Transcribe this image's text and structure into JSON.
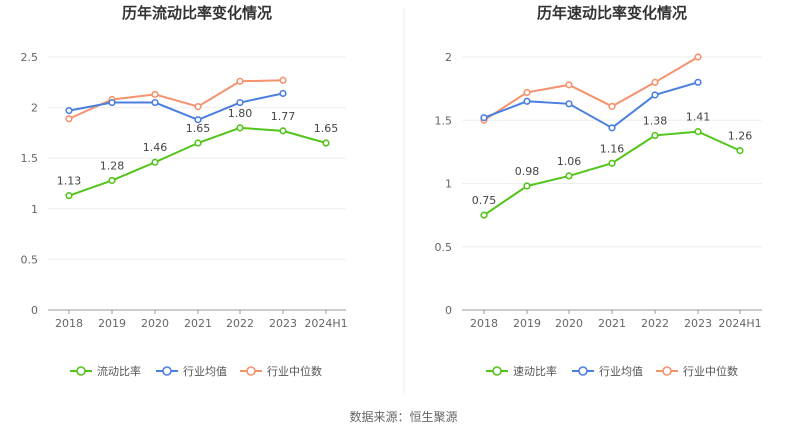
{
  "source": "数据来源：恒生聚源",
  "colors": {
    "primary": "#52c41a",
    "industry_avg": "#4a7fe0",
    "industry_median": "#f4926d"
  },
  "chart_data": [
    {
      "type": "line",
      "title": "历年流动比率变化情况",
      "categories": [
        "2018",
        "2019",
        "2020",
        "2021",
        "2022",
        "2023",
        "2024H1"
      ],
      "ylim": [
        0,
        2.5
      ],
      "yticks": [
        0,
        0.5,
        1,
        1.5,
        2,
        2.5
      ],
      "ytick_labels": [
        "0",
        "0.5",
        "1",
        "1.5",
        "2",
        "2.5"
      ],
      "series": [
        {
          "name": "流动比率",
          "color": "#52c41a",
          "values": [
            1.13,
            1.28,
            1.46,
            1.65,
            1.8,
            1.77,
            1.65
          ],
          "labels": [
            "1.13",
            "1.28",
            "1.46",
            "1.65",
            "1.80",
            "1.77",
            "1.65"
          ]
        },
        {
          "name": "行业均值",
          "color": "#4a7fe0",
          "values": [
            1.97,
            2.05,
            2.05,
            1.88,
            2.05,
            2.14,
            null
          ]
        },
        {
          "name": "行业中位数",
          "color": "#f4926d",
          "values": [
            1.89,
            2.08,
            2.13,
            2.01,
            2.26,
            2.27,
            null
          ]
        }
      ]
    },
    {
      "type": "line",
      "title": "历年速动比率变化情况",
      "categories": [
        "2018",
        "2019",
        "2020",
        "2021",
        "2022",
        "2023",
        "2024H1"
      ],
      "ylim": [
        0,
        2
      ],
      "yticks": [
        0,
        0.5,
        1,
        1.5,
        2
      ],
      "ytick_labels": [
        "0",
        "0.5",
        "1",
        "1.5",
        "2"
      ],
      "series": [
        {
          "name": "速动比率",
          "color": "#52c41a",
          "values": [
            0.75,
            0.98,
            1.06,
            1.16,
            1.38,
            1.41,
            1.26
          ],
          "labels": [
            "0.75",
            "0.98",
            "1.06",
            "1.16",
            "1.38",
            "1.41",
            "1.26"
          ]
        },
        {
          "name": "行业均值",
          "color": "#4a7fe0",
          "values": [
            1.52,
            1.65,
            1.63,
            1.44,
            1.7,
            1.8,
            null
          ]
        },
        {
          "name": "行业中位数",
          "color": "#f4926d",
          "values": [
            1.5,
            1.72,
            1.78,
            1.61,
            1.8,
            2.0,
            null
          ]
        }
      ]
    }
  ]
}
